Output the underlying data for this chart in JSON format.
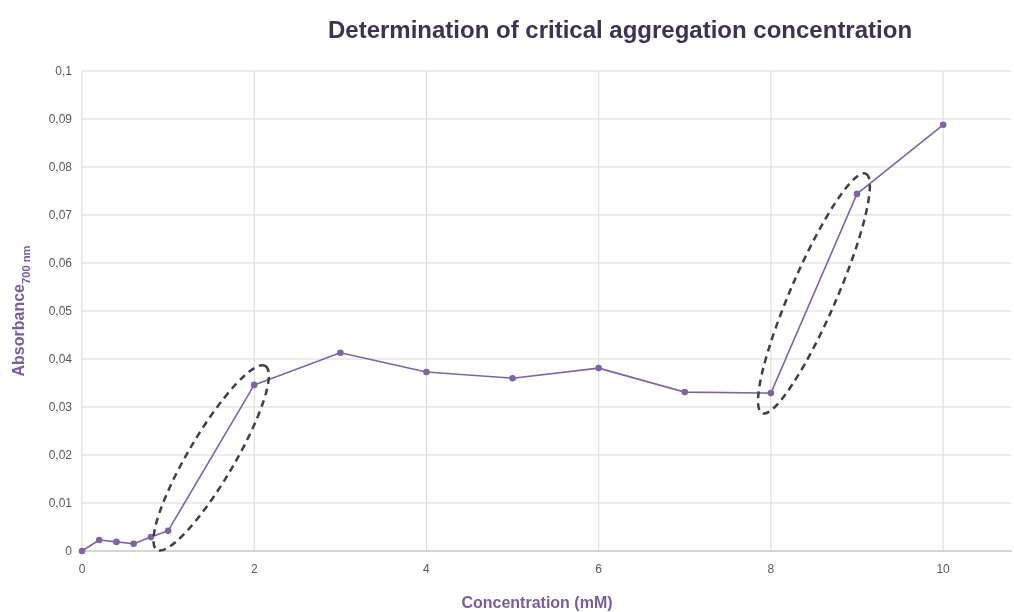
{
  "chart_data": {
    "type": "line",
    "title": "Determination of critical aggregation concentration",
    "xlabel": "Concentration (mM)",
    "ylabel": "Absorbance$_{700 nm}$",
    "x": [
      0,
      0.2,
      0.4,
      0.6,
      0.8,
      1,
      2,
      3,
      4,
      5,
      6,
      7,
      8,
      9,
      10
    ],
    "series": [
      {
        "color": "#8064a2",
        "values": [
          0,
          0.0023,
          0.0019,
          0.0015,
          0.0029,
          0.0042,
          0.0346,
          0.0413,
          0.0373,
          0.036,
          0.0381,
          0.0331,
          0.0329,
          0.0744,
          0.0888
        ]
      }
    ],
    "xlim": [
      0,
      10.8
    ],
    "xticks": [
      0,
      2,
      4,
      6,
      8,
      10
    ],
    "ylim": [
      0,
      0.1
    ],
    "yticks": [
      0,
      {
        "value": 0.01,
        "label": "0,01"
      },
      {
        "value": 0.02,
        "label": "0,02"
      },
      {
        "value": 0.03,
        "label": "0,03"
      },
      {
        "value": 0.04,
        "label": "0,04"
      },
      {
        "value": 0.05,
        "label": "0,05"
      },
      {
        "value": 0.06,
        "label": "0,06"
      },
      {
        "value": 0.07,
        "label": "0,07"
      },
      {
        "value": 0.08,
        "label": "0,08"
      },
      {
        "value": 0.09,
        "label": "0,09"
      },
      {
        "value": 0.1,
        "label": "0,1"
      }
    ],
    "grid": true,
    "marker": "circle",
    "line_style": "solid"
  }
}
